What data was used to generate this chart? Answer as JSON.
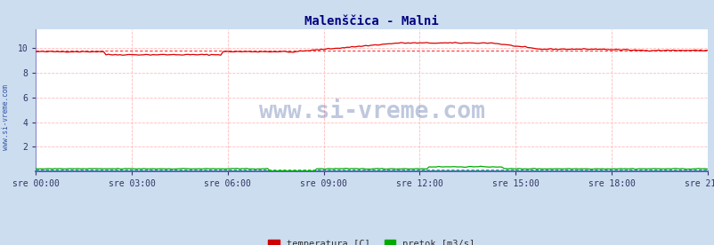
{
  "title": "Malenščica - Malni",
  "title_color": "#000080",
  "bg_color": "#ccddef",
  "plot_bg_color": "#ffffff",
  "x_labels": [
    "sre 00:00",
    "sre 03:00",
    "sre 06:00",
    "sre 09:00",
    "sre 12:00",
    "sre 15:00",
    "sre 18:00",
    "sre 21:00"
  ],
  "ylim": [
    0,
    11.5
  ],
  "yticks": [
    2,
    4,
    6,
    8,
    10
  ],
  "grid_color": "#ffbbbb",
  "temp_color": "#dd0000",
  "temp_avg_color": "#ff3333",
  "pretok_color": "#00aa00",
  "pretok_avg_color": "#00cc44",
  "axis_color": "#4444cc",
  "left_spine_color": "#8888cc",
  "legend_labels": [
    "temperatura [C]",
    "pretok [m3/s]"
  ],
  "legend_colors": [
    "#cc0000",
    "#00aa00"
  ],
  "watermark": "www.si-vreme.com",
  "watermark_color": "#1a3a8a",
  "side_text": "www.si-vreme.com",
  "side_text_color": "#3355aa",
  "n_points": 288,
  "temp_base": 9.7,
  "temp_avg_val": 9.77,
  "pretok_base": 0.22,
  "pretok_avg_val": 0.18
}
